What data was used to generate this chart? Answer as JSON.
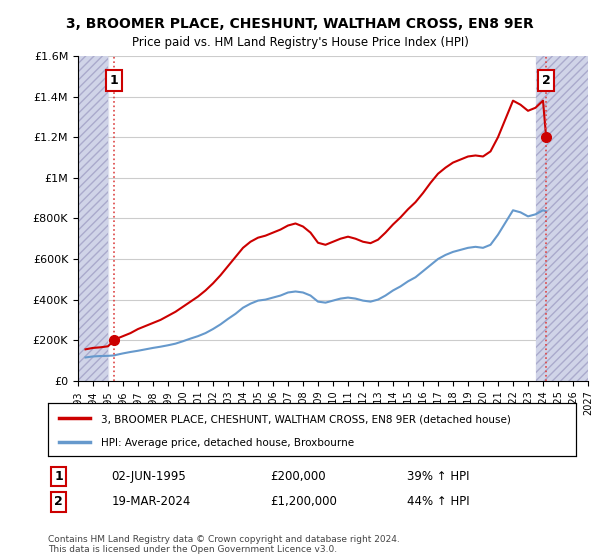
{
  "title": "3, BROOMER PLACE, CHESHUNT, WALTHAM CROSS, EN8 9ER",
  "subtitle": "Price paid vs. HM Land Registry's House Price Index (HPI)",
  "xlim_years": [
    1993,
    2027
  ],
  "ylim": [
    0,
    1600000
  ],
  "yticks": [
    0,
    200000,
    400000,
    600000,
    800000,
    1000000,
    1200000,
    1400000,
    1600000
  ],
  "ytick_labels": [
    "£0",
    "£200K",
    "£400K",
    "£600K",
    "£800K",
    "£1M",
    "£1.2M",
    "£1.4M",
    "£1.6M"
  ],
  "xticks": [
    1993,
    1994,
    1995,
    1996,
    1997,
    1998,
    1999,
    2000,
    2001,
    2002,
    2003,
    2004,
    2005,
    2006,
    2007,
    2008,
    2009,
    2010,
    2011,
    2012,
    2013,
    2014,
    2015,
    2016,
    2017,
    2018,
    2019,
    2020,
    2021,
    2022,
    2023,
    2024,
    2025,
    2026,
    2027
  ],
  "sale1_year": 1995.42,
  "sale1_price": 200000,
  "sale1_label": "1",
  "sale2_year": 2024.21,
  "sale2_price": 1200000,
  "sale2_label": "2",
  "hpi_color": "#6699cc",
  "price_color": "#cc0000",
  "dashed_line_color": "#dd4444",
  "annotation_box_color": "#cc0000",
  "background_hatch_color": "#e8e8f0",
  "legend_line1": "3, BROOMER PLACE, CHESHUNT, WALTHAM CROSS, EN8 9ER (detached house)",
  "legend_line2": "HPI: Average price, detached house, Broxbourne",
  "note1_label": "1",
  "note1_date": "02-JUN-1995",
  "note1_price": "£200,000",
  "note1_hpi": "39% ↑ HPI",
  "note2_label": "2",
  "note2_date": "19-MAR-2024",
  "note2_price": "£1,200,000",
  "note2_hpi": "44% ↑ HPI",
  "copyright": "Contains HM Land Registry data © Crown copyright and database right 2024.\nThis data is licensed under the Open Government Licence v3.0.",
  "hpi_data_years": [
    1993.5,
    1994,
    1994.5,
    1995,
    1995.42,
    1995.5,
    1996,
    1996.5,
    1997,
    1997.5,
    1998,
    1998.5,
    1999,
    1999.5,
    2000,
    2000.5,
    2001,
    2001.5,
    2002,
    2002.5,
    2003,
    2003.5,
    2004,
    2004.5,
    2005,
    2005.5,
    2006,
    2006.5,
    2007,
    2007.5,
    2008,
    2008.5,
    2009,
    2009.5,
    2010,
    2010.5,
    2011,
    2011.5,
    2012,
    2012.5,
    2013,
    2013.5,
    2014,
    2014.5,
    2015,
    2015.5,
    2016,
    2016.5,
    2017,
    2017.5,
    2018,
    2018.5,
    2019,
    2019.5,
    2020,
    2020.5,
    2021,
    2021.5,
    2022,
    2022.5,
    2023,
    2023.5,
    2024,
    2024.21
  ],
  "hpi_data_values": [
    115000,
    120000,
    122000,
    123000,
    125000,
    127000,
    135000,
    142000,
    148000,
    155000,
    162000,
    168000,
    175000,
    183000,
    195000,
    208000,
    220000,
    235000,
    255000,
    278000,
    305000,
    330000,
    360000,
    380000,
    395000,
    400000,
    410000,
    420000,
    435000,
    440000,
    435000,
    420000,
    390000,
    385000,
    395000,
    405000,
    410000,
    405000,
    395000,
    390000,
    400000,
    420000,
    445000,
    465000,
    490000,
    510000,
    540000,
    570000,
    600000,
    620000,
    635000,
    645000,
    655000,
    660000,
    655000,
    670000,
    720000,
    780000,
    840000,
    830000,
    810000,
    820000,
    840000,
    835000
  ],
  "price_data_years": [
    1993.5,
    1994,
    1994.5,
    1995,
    1995.42,
    1995.5,
    1996,
    1996.5,
    1997,
    1997.5,
    1998,
    1998.5,
    1999,
    1999.5,
    2000,
    2000.5,
    2001,
    2001.5,
    2002,
    2002.5,
    2003,
    2003.5,
    2004,
    2004.5,
    2005,
    2005.5,
    2006,
    2006.5,
    2007,
    2007.5,
    2008,
    2008.5,
    2009,
    2009.5,
    2010,
    2010.5,
    2011,
    2011.5,
    2012,
    2012.5,
    2013,
    2013.5,
    2014,
    2014.5,
    2015,
    2015.5,
    2016,
    2016.5,
    2017,
    2017.5,
    2018,
    2018.5,
    2019,
    2019.5,
    2020,
    2020.5,
    2021,
    2021.5,
    2022,
    2022.5,
    2023,
    2023.5,
    2024,
    2024.21
  ],
  "price_data_values": [
    155000,
    162000,
    165000,
    170000,
    200000,
    205000,
    220000,
    235000,
    255000,
    270000,
    285000,
    300000,
    320000,
    340000,
    365000,
    390000,
    415000,
    445000,
    480000,
    520000,
    565000,
    610000,
    655000,
    685000,
    705000,
    715000,
    730000,
    745000,
    765000,
    775000,
    760000,
    730000,
    680000,
    670000,
    685000,
    700000,
    710000,
    700000,
    685000,
    678000,
    695000,
    730000,
    770000,
    805000,
    845000,
    880000,
    925000,
    975000,
    1020000,
    1050000,
    1075000,
    1090000,
    1105000,
    1110000,
    1105000,
    1130000,
    1200000,
    1290000,
    1380000,
    1360000,
    1330000,
    1345000,
    1380000,
    1200000
  ]
}
